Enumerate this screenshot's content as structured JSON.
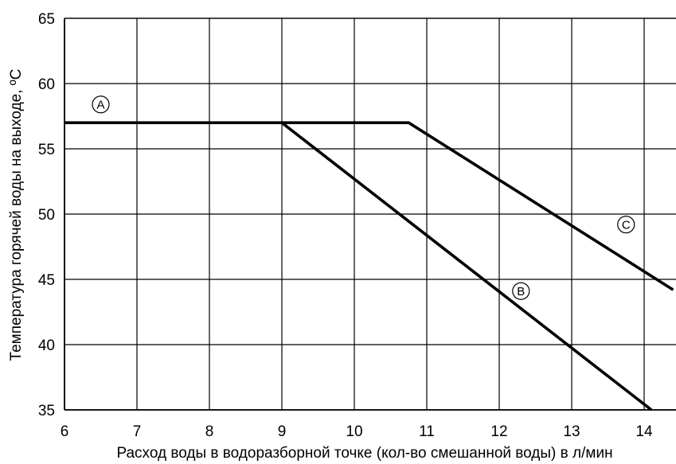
{
  "chart_data": {
    "type": "line",
    "xlabel": "Расход воды в водоразборной точке (кол-во смешанной воды) в л/мин",
    "ylabel": "Температура горячей воды на выходе, ºC",
    "xlim": [
      6,
      14.4
    ],
    "ylim": [
      35,
      65
    ],
    "xticks": [
      6,
      7,
      8,
      9,
      10,
      11,
      12,
      13,
      14
    ],
    "yticks": [
      35,
      40,
      45,
      50,
      55,
      60,
      65
    ],
    "grid": true,
    "series": [
      {
        "name": "A",
        "points": [
          [
            6,
            57
          ],
          [
            9,
            57
          ]
        ]
      },
      {
        "name": "B",
        "points": [
          [
            9,
            57
          ],
          [
            14.1,
            35
          ]
        ]
      },
      {
        "name": "C",
        "points": [
          [
            9,
            57
          ],
          [
            10.75,
            57
          ],
          [
            14.4,
            44.2
          ]
        ]
      }
    ],
    "annotations": [
      {
        "text": "A",
        "x": 6.5,
        "y": 58.4
      },
      {
        "text": "B",
        "x": 12.3,
        "y": 44.1
      },
      {
        "text": "C",
        "x": 13.75,
        "y": 49.2
      }
    ],
    "colors": {
      "line": "#000000",
      "grid": "#000000",
      "background": "#ffffff"
    }
  }
}
